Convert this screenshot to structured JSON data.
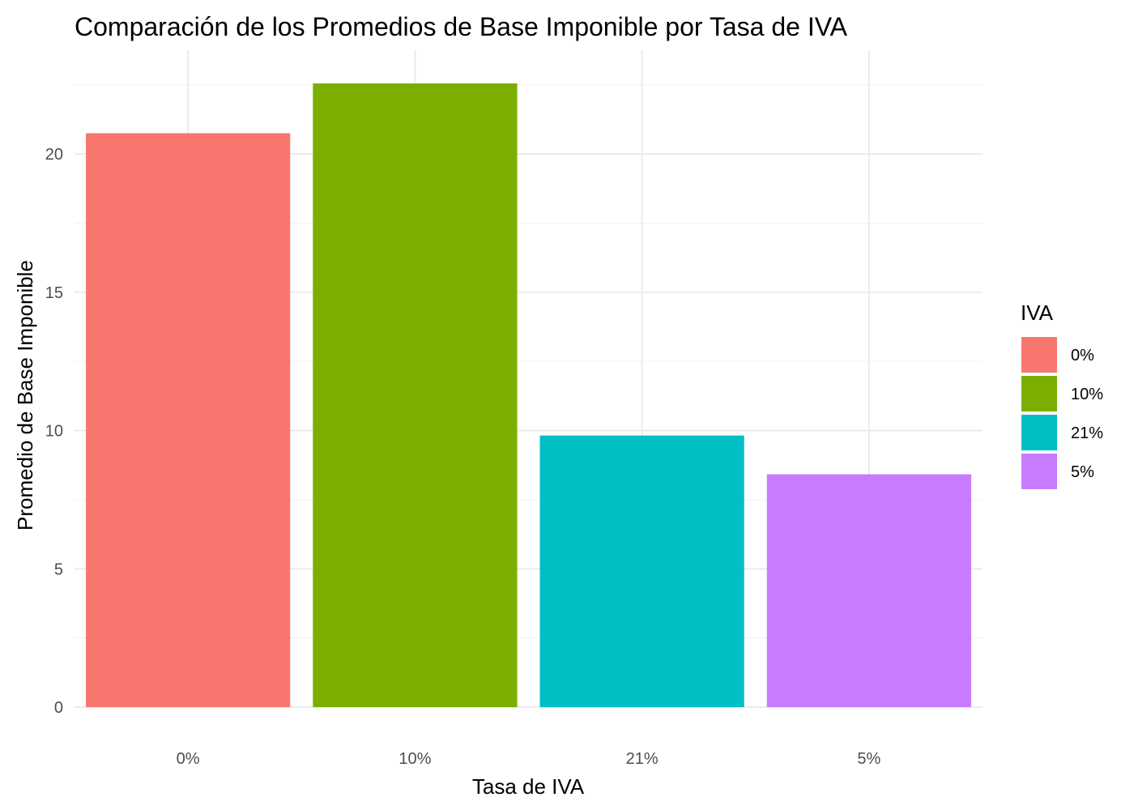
{
  "chart_data": {
    "type": "bar",
    "title": "Comparación de los Promedios de Base Imponible por Tasa de IVA",
    "xlabel": "Tasa de IVA",
    "ylabel": "Promedio de Base Imponible",
    "categories": [
      "0%",
      "10%",
      "21%",
      "5%"
    ],
    "values": [
      20.75,
      22.55,
      9.82,
      8.42
    ],
    "colors": [
      "#F8766D",
      "#7CAE00",
      "#00BFC4",
      "#C77CFF"
    ],
    "ylim": [
      0,
      22.55
    ],
    "yticks": [
      0,
      5,
      10,
      15,
      20
    ],
    "ytick_labels": [
      "0",
      "5",
      "10",
      "15",
      "20"
    ],
    "grid": true,
    "legend": {
      "title": "IVA",
      "placement": "right",
      "entries": [
        "0%",
        "10%",
        "21%",
        "5%"
      ]
    }
  }
}
